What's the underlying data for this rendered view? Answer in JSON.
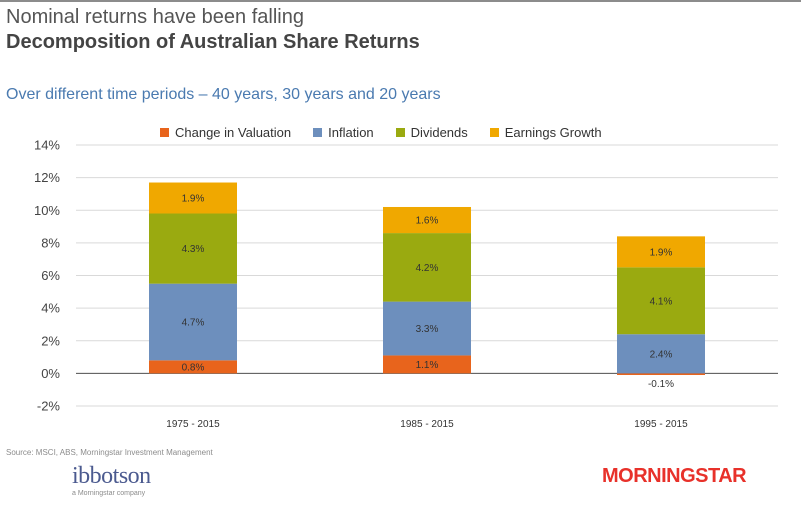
{
  "header": {
    "title": "Nominal returns have been falling",
    "subtitle": "Decomposition of Australian Share Returns",
    "description": "Over different time periods – 40 years, 30 years and 20 years"
  },
  "footer": {
    "source": "Source: MSCI, ABS, Morningstar Investment Management",
    "ibbotson_logo": "ibbotson",
    "ibbotson_tagline": "a Morningstar company",
    "morningstar_logo": "MORNINGSTAR"
  },
  "colors": {
    "Change in Valuation": "#e8641c",
    "Inflation": "#6d8fbd",
    "Dividends": "#9aaa10",
    "Earnings Growth": "#f0a800"
  },
  "chart_data": {
    "type": "bar",
    "stacked": true,
    "categories": [
      "1975 - 2015",
      "1985 - 2015",
      "1995 - 2015"
    ],
    "series": [
      {
        "name": "Change in Valuation",
        "values": [
          0.8,
          1.1,
          -0.1
        ],
        "labels": [
          "0.8%",
          "1.1%",
          "-0.1%"
        ]
      },
      {
        "name": "Inflation",
        "values": [
          4.7,
          3.3,
          2.4
        ],
        "labels": [
          "4.7%",
          "3.3%",
          "2.4%"
        ]
      },
      {
        "name": "Dividends",
        "values": [
          4.3,
          4.2,
          4.1
        ],
        "labels": [
          "4.3%",
          "4.2%",
          "4.1%"
        ]
      },
      {
        "name": "Earnings Growth",
        "values": [
          1.9,
          1.6,
          1.9
        ],
        "labels": [
          "1.9%",
          "1.6%",
          "1.9%"
        ]
      }
    ],
    "ylim": [
      -2,
      14
    ],
    "yticks": [
      14,
      12,
      10,
      8,
      6,
      4,
      2,
      0,
      -2
    ],
    "ytick_labels": [
      "14%",
      "12%",
      "10%",
      "8%",
      "6%",
      "4%",
      "2%",
      "0%",
      "-2%"
    ],
    "grid": true,
    "legend": "top"
  }
}
